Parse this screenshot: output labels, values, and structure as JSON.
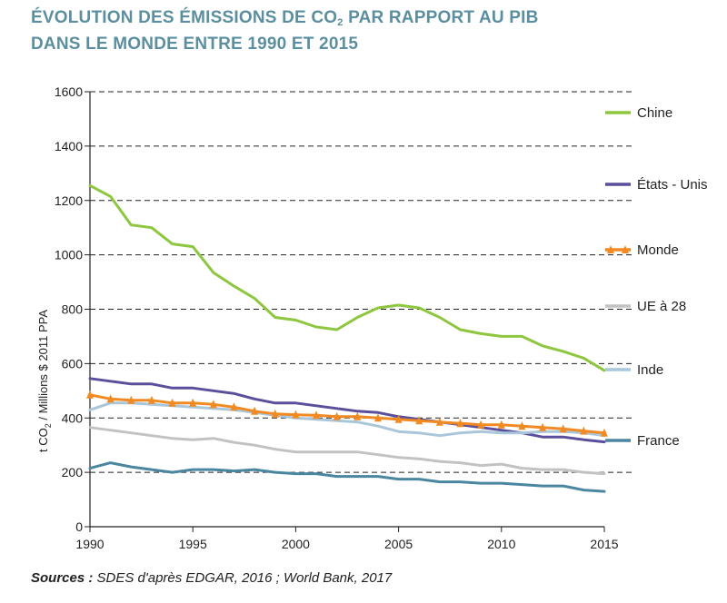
{
  "title": {
    "line1_pre": "ÉVOLUTION DES ÉMISSIONS DE CO",
    "line1_sub": "2",
    "line1_post": " PAR RAPPORT AU PIB",
    "line2": "DANS LE MONDE ENTRE 1990 ET 2015"
  },
  "source": {
    "label": "Sources :",
    "text": " SDES d'après EDGAR, 2016 ; World Bank, 2017"
  },
  "chart_data": {
    "type": "line",
    "ylabel_pre": "t CO",
    "ylabel_sub": "2",
    "ylabel_post": " / Millions $ 2011 PPA",
    "xlabel": "",
    "xlim": [
      1990,
      2015
    ],
    "ylim": [
      0,
      1600
    ],
    "xticks": [
      1990,
      1995,
      2000,
      2005,
      2010,
      2015
    ],
    "yticks": [
      0,
      200,
      400,
      600,
      800,
      1000,
      1200,
      1400,
      1600
    ],
    "grid": "horizontal dashed",
    "legend_position": "right",
    "x": [
      1990,
      1991,
      1992,
      1993,
      1994,
      1995,
      1996,
      1997,
      1998,
      1999,
      2000,
      2001,
      2002,
      2003,
      2004,
      2005,
      2006,
      2007,
      2008,
      2009,
      2010,
      2011,
      2012,
      2013,
      2014,
      2015
    ],
    "series": [
      {
        "name": "Chine",
        "color": "#8dc63f",
        "marker": "none",
        "values": [
          1255,
          1215,
          1110,
          1100,
          1040,
          1030,
          935,
          885,
          840,
          770,
          760,
          735,
          725,
          770,
          805,
          815,
          805,
          770,
          725,
          710,
          700,
          700,
          665,
          645,
          620,
          575
        ]
      },
      {
        "name": "États - Unis",
        "color": "#5a4f9c",
        "marker": "none",
        "values": [
          545,
          535,
          525,
          525,
          510,
          510,
          500,
          490,
          470,
          455,
          455,
          445,
          435,
          425,
          420,
          405,
          395,
          385,
          375,
          365,
          355,
          345,
          330,
          330,
          320,
          312
        ]
      },
      {
        "name": "Monde",
        "color": "#f18a22",
        "marker": "triangle",
        "values": [
          485,
          470,
          465,
          465,
          455,
          455,
          450,
          440,
          425,
          415,
          412,
          410,
          405,
          405,
          400,
          395,
          390,
          385,
          380,
          375,
          375,
          370,
          365,
          360,
          352,
          345
        ]
      },
      {
        "name": "UE à 28",
        "color": "#c2c2c2",
        "marker": "none",
        "values": [
          365,
          355,
          345,
          335,
          325,
          320,
          325,
          310,
          300,
          285,
          275,
          275,
          275,
          275,
          265,
          255,
          250,
          240,
          235,
          225,
          230,
          215,
          210,
          210,
          200,
          195
        ]
      },
      {
        "name": "Inde",
        "color": "#a9c6da",
        "marker": "none",
        "values": [
          430,
          455,
          455,
          450,
          445,
          440,
          435,
          430,
          420,
          410,
          400,
          395,
          390,
          385,
          370,
          350,
          345,
          335,
          345,
          350,
          345,
          345,
          350,
          350,
          345,
          335
        ]
      },
      {
        "name": "France",
        "color": "#4a86a0",
        "marker": "none",
        "values": [
          215,
          235,
          220,
          210,
          200,
          210,
          210,
          205,
          210,
          200,
          195,
          195,
          185,
          185,
          185,
          175,
          175,
          165,
          165,
          160,
          160,
          155,
          150,
          150,
          135,
          130
        ]
      }
    ]
  }
}
